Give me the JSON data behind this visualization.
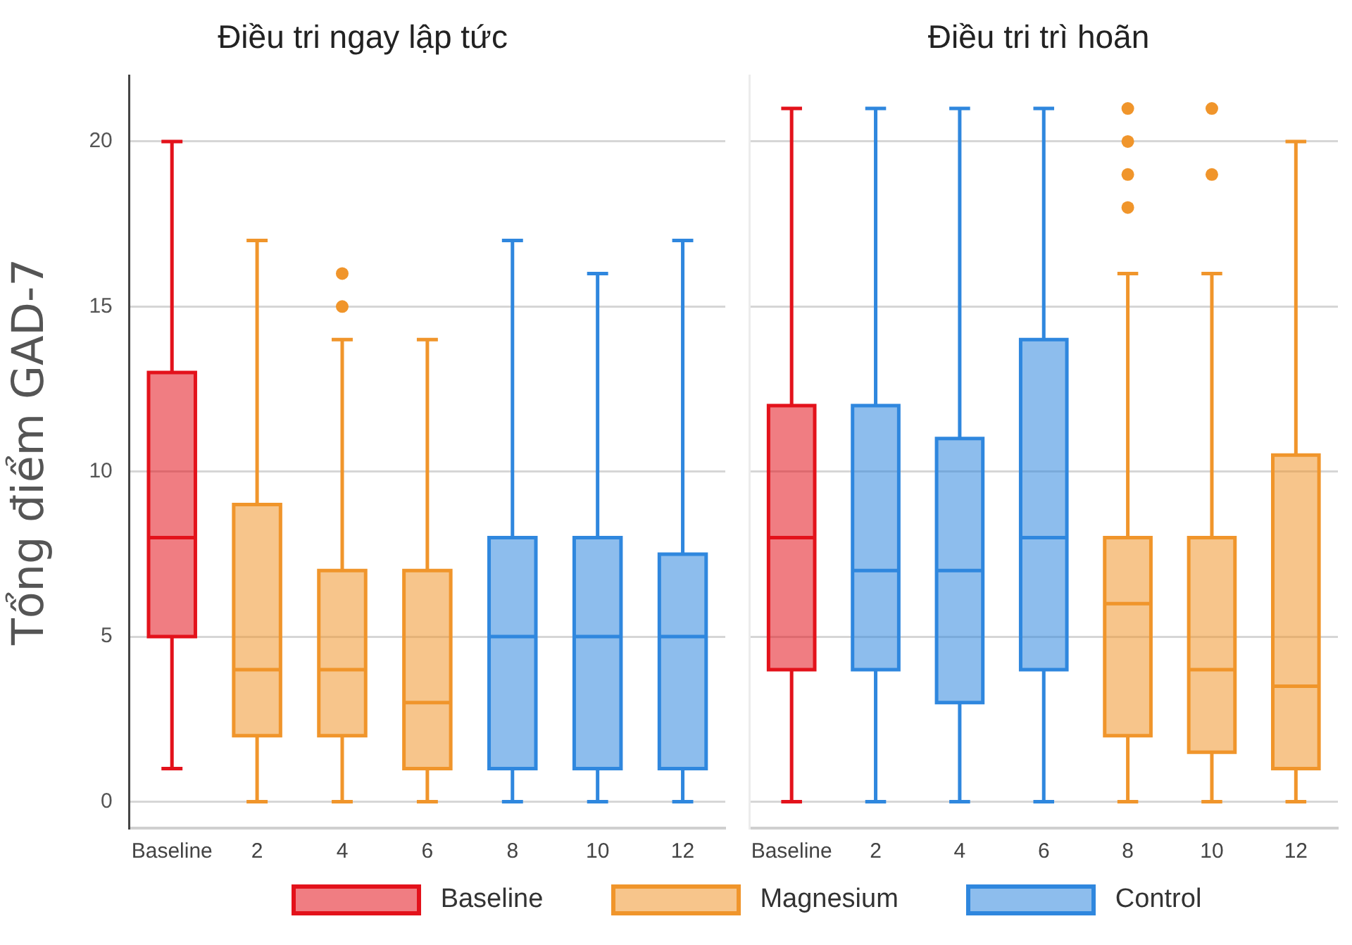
{
  "chart_data": [
    {
      "type": "box",
      "title": "Điều tri ngay lập tức",
      "ylabel": "Tổng điểm GAD-7",
      "categories": [
        "Baseline",
        "2",
        "4",
        "6",
        "8",
        "10",
        "12"
      ],
      "ylim": [
        -0.8,
        22
      ],
      "yticks": [
        0,
        5,
        10,
        15,
        20
      ],
      "grid": "y",
      "legend": "bottom",
      "series": [
        {
          "name": "Baseline",
          "color": "#e3121b",
          "x": [
            "Baseline"
          ],
          "boxes": [
            {
              "low": 1,
              "q1": 5,
              "median": 8,
              "q3": 13,
              "high": 20
            }
          ]
        },
        {
          "name": "Magnesium",
          "color": "#f0952b",
          "x": [
            "2",
            "4",
            "6"
          ],
          "boxes": [
            {
              "low": 0,
              "q1": 2,
              "median": 4,
              "q3": 9,
              "high": 17
            },
            {
              "low": 0,
              "q1": 2,
              "median": 4,
              "q3": 7,
              "high": 14,
              "outliers": [
                15,
                16
              ]
            },
            {
              "low": 0,
              "q1": 1,
              "median": 3,
              "q3": 7,
              "high": 14
            }
          ]
        },
        {
          "name": "Control",
          "color": "#2f87de",
          "x": [
            "8",
            "10",
            "12"
          ],
          "boxes": [
            {
              "low": 0,
              "q1": 1,
              "median": 5,
              "q3": 8,
              "high": 17
            },
            {
              "low": 0,
              "q1": 1,
              "median": 5,
              "q3": 8,
              "high": 16
            },
            {
              "low": 0,
              "q1": 1,
              "median": 5,
              "q3": 7.5,
              "high": 17
            }
          ]
        }
      ]
    },
    {
      "type": "box",
      "title": "Điều tri trì hoãn",
      "categories": [
        "Baseline",
        "2",
        "4",
        "6",
        "8",
        "10",
        "12"
      ],
      "ylim": [
        -0.8,
        22
      ],
      "yticks": [
        0,
        5,
        10,
        15,
        20
      ],
      "grid": "y",
      "tick_labels": "x",
      "series": [
        {
          "name": "Baseline",
          "color": "#e3121b",
          "x": [
            "Baseline"
          ],
          "boxes": [
            {
              "low": 0,
              "q1": 4,
              "median": 8,
              "q3": 12,
              "high": 21
            }
          ]
        },
        {
          "name": "Control",
          "color": "#2f87de",
          "x": [
            "2",
            "4",
            "6"
          ],
          "boxes": [
            {
              "low": 0,
              "q1": 4,
              "median": 7,
              "q3": 12,
              "high": 21
            },
            {
              "low": 0,
              "q1": 3,
              "median": 7,
              "q3": 11,
              "high": 21
            },
            {
              "low": 0,
              "q1": 4,
              "median": 8,
              "q3": 14,
              "high": 21
            }
          ]
        },
        {
          "name": "Magnesium",
          "color": "#f0952b",
          "x": [
            "8",
            "10",
            "12"
          ],
          "boxes": [
            {
              "low": 0,
              "q1": 2,
              "median": 6,
              "q3": 8,
              "high": 16,
              "outliers": [
                18,
                19,
                20,
                21
              ]
            },
            {
              "low": 0,
              "q1": 1.5,
              "median": 4,
              "q3": 8,
              "high": 16,
              "outliers": [
                19,
                21
              ]
            },
            {
              "low": 0,
              "q1": 1,
              "median": 3.5,
              "q3": 10.5,
              "high": 20
            }
          ]
        }
      ]
    }
  ]
}
